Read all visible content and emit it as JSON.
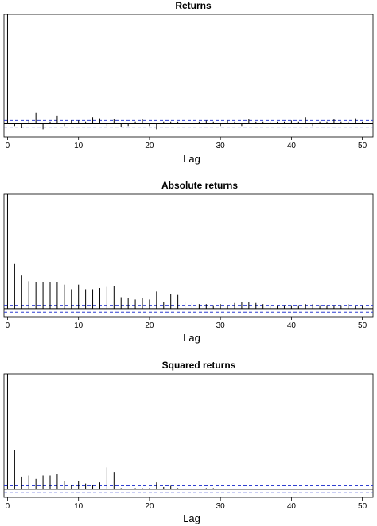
{
  "chart_data": [
    {
      "type": "bar",
      "title": "Returns",
      "xlabel": "Lag",
      "ylabel": "",
      "xlim": [
        -0.5,
        51.5
      ],
      "ylim": [
        -0.12,
        1.0
      ],
      "x_ticks": [
        0,
        10,
        20,
        30,
        40,
        50
      ],
      "confidence_bound": 0.03,
      "lags": [
        0,
        1,
        2,
        3,
        4,
        5,
        6,
        7,
        8,
        9,
        10,
        11,
        12,
        13,
        14,
        15,
        16,
        17,
        18,
        19,
        20,
        21,
        22,
        23,
        24,
        25,
        26,
        27,
        28,
        29,
        30,
        31,
        32,
        33,
        34,
        35,
        36,
        37,
        38,
        39,
        40,
        41,
        42,
        43,
        44,
        45,
        46,
        47,
        48,
        49,
        50
      ],
      "values": [
        1.0,
        -0.02,
        -0.04,
        0.03,
        0.1,
        -0.05,
        0.02,
        0.07,
        -0.02,
        0.03,
        0.03,
        0.02,
        0.06,
        0.05,
        -0.02,
        0.04,
        -0.03,
        -0.02,
        0.02,
        0.04,
        -0.02,
        -0.05,
        0.02,
        0.02,
        0.02,
        0.02,
        0.01,
        0.02,
        0.03,
        0.02,
        -0.02,
        0.03,
        0.02,
        -0.02,
        0.04,
        0.02,
        0.02,
        0.02,
        0.02,
        0.02,
        0.03,
        0.02,
        0.06,
        -0.02,
        0.02,
        0.02,
        0.04,
        0.02,
        0.02,
        0.05,
        0.02
      ]
    },
    {
      "type": "bar",
      "title": "Absolute returns",
      "xlabel": "Lag",
      "ylabel": "",
      "xlim": [
        -0.5,
        51.5
      ],
      "ylim": [
        -0.07,
        1.0
      ],
      "x_ticks": [
        0,
        10,
        20,
        30,
        40,
        50
      ],
      "confidence_bound": 0.03,
      "lags": [
        0,
        1,
        2,
        3,
        4,
        5,
        6,
        7,
        8,
        9,
        10,
        11,
        12,
        13,
        14,
        15,
        16,
        17,
        18,
        19,
        20,
        21,
        22,
        23,
        24,
        25,
        26,
        27,
        28,
        29,
        30,
        31,
        32,
        33,
        34,
        35,
        36,
        37,
        38,
        39,
        40,
        41,
        42,
        43,
        44,
        45,
        46,
        47,
        48,
        49,
        50
      ],
      "values": [
        1.0,
        0.39,
        0.29,
        0.24,
        0.23,
        0.23,
        0.23,
        0.23,
        0.21,
        0.17,
        0.21,
        0.17,
        0.17,
        0.18,
        0.19,
        0.2,
        0.1,
        0.09,
        0.08,
        0.09,
        0.08,
        0.15,
        0.06,
        0.13,
        0.12,
        0.06,
        0.05,
        0.04,
        0.04,
        0.03,
        0.04,
        0.03,
        0.05,
        0.06,
        0.06,
        0.05,
        0.04,
        0.03,
        0.03,
        0.03,
        0.03,
        0.03,
        0.04,
        0.04,
        0.03,
        0.03,
        0.03,
        0.03,
        0.04,
        0.02,
        0.03
      ]
    },
    {
      "type": "bar",
      "title": "Squared returns",
      "xlabel": "Lag",
      "ylabel": "",
      "xlim": [
        -0.5,
        51.5
      ],
      "ylim": [
        -0.07,
        1.0
      ],
      "x_ticks": [
        0,
        10,
        20,
        30,
        40,
        50
      ],
      "confidence_bound": 0.03,
      "lags": [
        0,
        1,
        2,
        3,
        4,
        5,
        6,
        7,
        8,
        9,
        10,
        11,
        12,
        13,
        14,
        15,
        16,
        17,
        18,
        19,
        20,
        21,
        22,
        23,
        24,
        25,
        26,
        27,
        28,
        29,
        30,
        31,
        32,
        33,
        34,
        35,
        36,
        37,
        38,
        39,
        40,
        41,
        42,
        43,
        44,
        45,
        46,
        47,
        48,
        49,
        50
      ],
      "values": [
        1.0,
        0.34,
        0.11,
        0.12,
        0.09,
        0.12,
        0.12,
        0.13,
        0.07,
        0.04,
        0.07,
        0.05,
        0.04,
        0.06,
        0.19,
        0.15,
        0.01,
        0.0,
        0.01,
        0.01,
        0.01,
        0.06,
        0.02,
        0.03,
        0.01,
        0.01,
        0.01,
        0.0,
        0.01,
        0.01,
        0.0,
        0.0,
        0.0,
        0.0,
        0.0,
        0.0,
        0.0,
        0.0,
        0.0,
        0.0,
        0.0,
        0.0,
        0.0,
        0.0,
        0.0,
        0.0,
        0.0,
        0.0,
        0.0,
        0.0,
        0.0
      ]
    }
  ]
}
